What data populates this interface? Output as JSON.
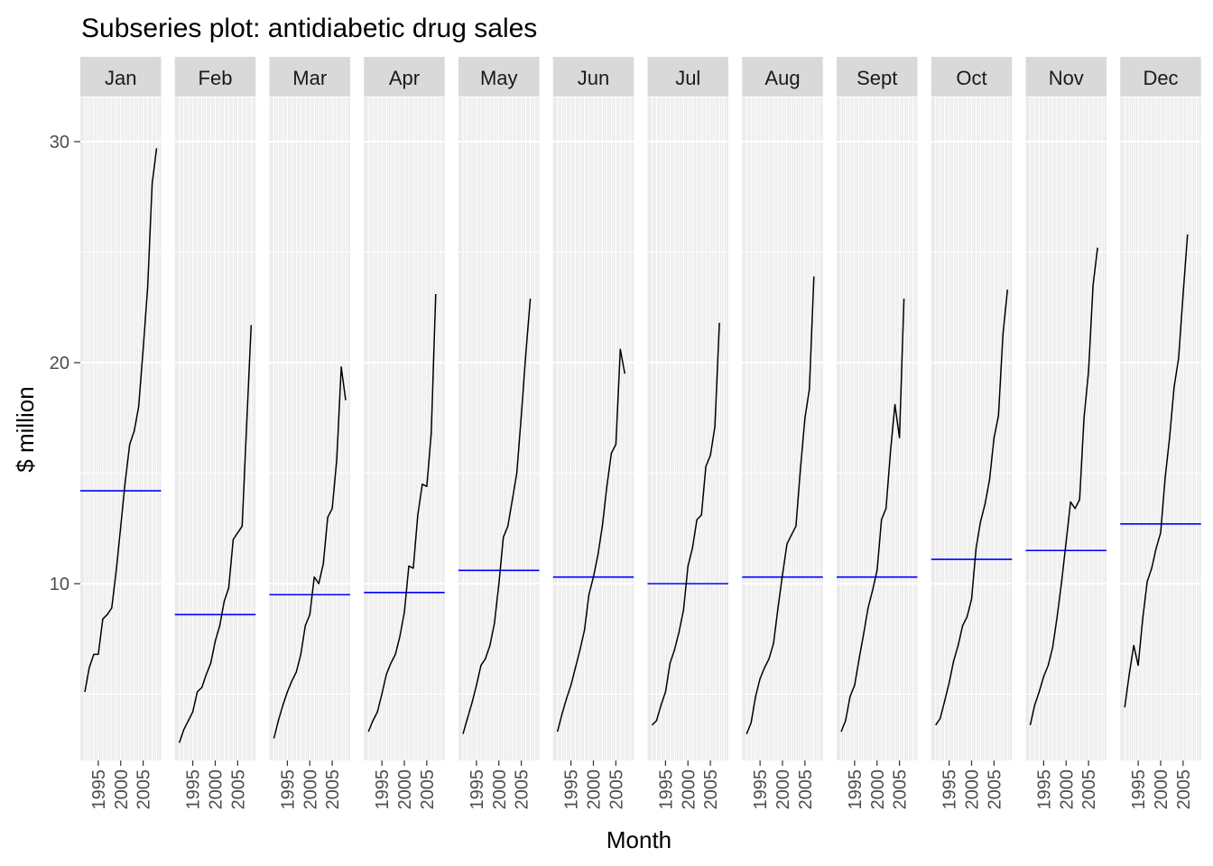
{
  "chart_data": {
    "type": "line",
    "title": "Subseries plot: antidiabetic drug sales",
    "xlabel": "Month",
    "ylabel": "$ million",
    "ylim": [
      2.0,
      32.0
    ],
    "yticks": [
      10,
      20,
      30
    ],
    "xlim": [
      1991.0,
      2009.0
    ],
    "xticks": [
      1995,
      2000,
      2005
    ],
    "grid": true,
    "legend": "none",
    "colors": {
      "panel_bg": "#ebebeb",
      "strip_bg": "#d9d9d9",
      "grid": "#ffffff",
      "series": "#000000",
      "mean_line": "#0000ff"
    },
    "panels": [
      {
        "month": "Jan",
        "mean": 14.2,
        "x": [
          1992,
          1993,
          1994,
          1995,
          1996,
          1997,
          1998,
          1999,
          2000,
          2001,
          2002,
          2003,
          2004,
          2005,
          2006,
          2007,
          2008
        ],
        "y": [
          5.1,
          6.2,
          6.8,
          6.8,
          8.4,
          8.6,
          8.9,
          10.6,
          12.6,
          14.6,
          16.3,
          16.9,
          18.0,
          20.6,
          23.4,
          28.1,
          29.7
        ]
      },
      {
        "month": "Feb",
        "mean": 8.6,
        "x": [
          1992,
          1993,
          1994,
          1995,
          1996,
          1997,
          1998,
          1999,
          2000,
          2001,
          2002,
          2003,
          2004,
          2005,
          2006,
          2007,
          2008
        ],
        "y": [
          2.8,
          3.4,
          3.8,
          4.2,
          5.1,
          5.3,
          5.9,
          6.4,
          7.4,
          8.1,
          9.2,
          9.8,
          12.0,
          12.3,
          12.6,
          17.2,
          21.7
        ]
      },
      {
        "month": "Mar",
        "mean": 9.5,
        "x": [
          1992,
          1993,
          1994,
          1995,
          1996,
          1997,
          1998,
          1999,
          2000,
          2001,
          2002,
          2003,
          2004,
          2005,
          2006,
          2007,
          2008
        ],
        "y": [
          3.0,
          3.8,
          4.5,
          5.1,
          5.6,
          6.0,
          6.8,
          8.1,
          8.6,
          10.3,
          10.0,
          10.9,
          13.0,
          13.4,
          15.6,
          19.8,
          18.3
        ]
      },
      {
        "month": "Apr",
        "mean": 9.6,
        "x": [
          1992,
          1993,
          1994,
          1995,
          1996,
          1997,
          1998,
          1999,
          2000,
          2001,
          2002,
          2003,
          2004,
          2005,
          2006,
          2007,
          2008
        ],
        "y": [
          3.3,
          3.8,
          4.2,
          5.0,
          5.9,
          6.4,
          6.8,
          7.6,
          8.7,
          10.8,
          10.7,
          13.1,
          14.5,
          14.4,
          16.8,
          23.1,
          null
        ]
      },
      {
        "month": "May",
        "mean": 10.6,
        "x": [
          1992,
          1993,
          1994,
          1995,
          1996,
          1997,
          1998,
          1999,
          2000,
          2001,
          2002,
          2003,
          2004,
          2005,
          2006,
          2007,
          2008
        ],
        "y": [
          3.2,
          3.9,
          4.6,
          5.4,
          6.3,
          6.6,
          7.2,
          8.2,
          10.0,
          12.1,
          12.6,
          13.8,
          15.0,
          17.6,
          20.4,
          22.9,
          null
        ]
      },
      {
        "month": "Jun",
        "mean": 10.3,
        "x": [
          1992,
          1993,
          1994,
          1995,
          1996,
          1997,
          1998,
          1999,
          2000,
          2001,
          2002,
          2003,
          2004,
          2005,
          2006,
          2007,
          2008
        ],
        "y": [
          3.3,
          4.1,
          4.8,
          5.4,
          6.2,
          7.0,
          7.9,
          9.5,
          10.3,
          11.3,
          12.6,
          14.4,
          15.9,
          16.3,
          20.6,
          19.5,
          null
        ]
      },
      {
        "month": "Jul",
        "mean": 10.0,
        "x": [
          1992,
          1993,
          1994,
          1995,
          1996,
          1997,
          1998,
          1999,
          2000,
          2001,
          2002,
          2003,
          2004,
          2005,
          2006,
          2007,
          2008
        ],
        "y": [
          3.6,
          3.8,
          4.5,
          5.1,
          6.4,
          7.0,
          7.8,
          8.8,
          10.8,
          11.6,
          12.9,
          13.1,
          15.3,
          15.8,
          17.1,
          21.8,
          null
        ]
      },
      {
        "month": "Aug",
        "mean": 10.3,
        "x": [
          1992,
          1993,
          1994,
          1995,
          1996,
          1997,
          1998,
          1999,
          2000,
          2001,
          2002,
          2003,
          2004,
          2005,
          2006,
          2007,
          2008
        ],
        "y": [
          3.2,
          3.7,
          4.9,
          5.7,
          6.2,
          6.6,
          7.3,
          8.9,
          10.4,
          11.8,
          12.2,
          12.6,
          15.2,
          17.5,
          18.8,
          23.9,
          null
        ]
      },
      {
        "month": "Sept",
        "mean": 10.3,
        "x": [
          1992,
          1993,
          1994,
          1995,
          1996,
          1997,
          1998,
          1999,
          2000,
          2001,
          2002,
          2003,
          2004,
          2005,
          2006,
          2007,
          2008
        ],
        "y": [
          3.3,
          3.8,
          4.9,
          5.4,
          6.6,
          7.7,
          8.9,
          9.7,
          10.6,
          12.9,
          13.4,
          16.0,
          18.1,
          16.6,
          22.9,
          null,
          null
        ]
      },
      {
        "month": "Oct",
        "mean": 11.1,
        "x": [
          1992,
          1993,
          1994,
          1995,
          1996,
          1997,
          1998,
          1999,
          2000,
          2001,
          2002,
          2003,
          2004,
          2005,
          2006,
          2007,
          2008
        ],
        "y": [
          3.6,
          3.9,
          4.7,
          5.5,
          6.5,
          7.2,
          8.1,
          8.5,
          9.3,
          11.6,
          12.8,
          13.6,
          14.7,
          16.6,
          17.6,
          21.3,
          23.3
        ]
      },
      {
        "month": "Nov",
        "mean": 11.5,
        "x": [
          1992,
          1993,
          1994,
          1995,
          1996,
          1997,
          1998,
          1999,
          2000,
          2001,
          2002,
          2003,
          2004,
          2005,
          2006,
          2007,
          2008
        ],
        "y": [
          3.6,
          4.5,
          5.1,
          5.8,
          6.3,
          7.1,
          8.5,
          10.1,
          11.9,
          13.7,
          13.4,
          13.8,
          17.5,
          19.6,
          23.5,
          25.2,
          null
        ]
      },
      {
        "month": "Dec",
        "mean": 12.7,
        "x": [
          1992,
          1993,
          1994,
          1995,
          1996,
          1997,
          1998,
          1999,
          2000,
          2001,
          2002,
          2003,
          2004,
          2005,
          2006,
          2007,
          2008
        ],
        "y": [
          4.4,
          5.9,
          7.2,
          6.3,
          8.4,
          10.1,
          10.7,
          11.6,
          12.3,
          14.8,
          16.6,
          18.9,
          20.2,
          23.1,
          25.8,
          null,
          null
        ]
      }
    ]
  }
}
